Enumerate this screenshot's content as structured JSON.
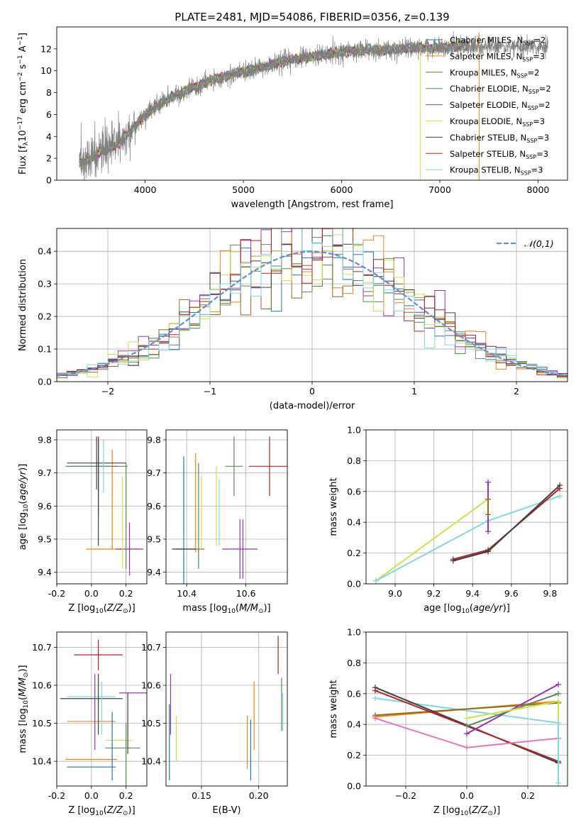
{
  "figure": {
    "title": "PLATE=2481, MJD=54086, FIBERID=0356, z=0.139"
  },
  "models": [
    {
      "label": "Chabrier MILES, N_SSP=2",
      "main": "Chabrier MILES, N",
      "sub": "SSP",
      "tail": "=2",
      "color": "#1f77b4"
    },
    {
      "label": "Salpeter MILES, N_SSP=3",
      "main": "Salpeter MILES, N",
      "sub": "SSP",
      "tail": "=3",
      "color": "#ff7f0e"
    },
    {
      "label": "Kroupa MILES, N_SSP=2",
      "main": "Kroupa MILES, N",
      "sub": "SSP",
      "tail": "=2",
      "color": "#8c6d1f"
    },
    {
      "label": "Chabrier ELODIE, N_SSP=2",
      "main": "Chabrier ELODIE, N",
      "sub": "SSP",
      "tail": "=2",
      "color": "#5a8a5a"
    },
    {
      "label": "Salpeter ELODIE, N_SSP=2",
      "main": "Salpeter ELODIE, N",
      "sub": "SSP",
      "tail": "=2",
      "color": "#9b30b8"
    },
    {
      "label": "Kroupa ELODIE, N_SSP=3",
      "main": "Kroupa ELODIE, N",
      "sub": "SSP",
      "tail": "=3",
      "color": "#cfe04a"
    },
    {
      "label": "Chabrier STELIB, N_SSP=3",
      "main": "Chabrier STELIB, N",
      "sub": "SSP",
      "tail": "=3",
      "color": "#404040"
    },
    {
      "label": "Salpeter STELIB, N_SSP=3",
      "main": "Salpeter STELIB, N",
      "sub": "SSP",
      "tail": "=3",
      "color": "#b22222"
    },
    {
      "label": "Kroupa STELIB, N_SSP=3",
      "main": "Kroupa STELIB, N",
      "sub": "SSP",
      "tail": "=3",
      "color": "#80d8e0"
    }
  ],
  "chart_data": [
    {
      "id": "spectrum",
      "type": "line",
      "xlabel": "wavelength [Angstrom, rest frame]",
      "ylabel": "Flux [f_λ 10^-17 erg cm^-2 s^-1 A^-1]",
      "xlim": [
        3100,
        8300
      ],
      "ylim": [
        0,
        14
      ],
      "xticks": [
        4000,
        5000,
        6000,
        7000,
        8000
      ],
      "yticks": [
        0,
        2,
        4,
        6,
        8,
        10,
        12
      ],
      "grid": false,
      "legend": "right",
      "data_color": "#808080",
      "continuum": {
        "x": [
          3330,
          3450,
          3550,
          3700,
          3850,
          3950,
          4100,
          4300,
          4500,
          4700,
          4900,
          5100,
          5300,
          5500,
          5700,
          5900,
          6100,
          6300,
          6500,
          6700,
          6900,
          7100,
          7300
        ],
        "y": [
          1.7,
          2.0,
          2.6,
          3.2,
          4.5,
          5.5,
          6.7,
          7.7,
          8.5,
          9.2,
          9.7,
          10.1,
          10.6,
          11.0,
          11.3,
          11.6,
          11.8,
          11.9,
          11.9,
          12.1,
          12.1,
          12.2,
          12.2
        ]
      }
    },
    {
      "id": "residuals",
      "type": "histogram",
      "xlabel": "(data-model)/error",
      "ylabel": "Normed distribution",
      "xlim": [
        -2.5,
        2.5
      ],
      "ylim": [
        0,
        0.47
      ],
      "xticks": [
        -2,
        -1,
        0,
        1,
        2
      ],
      "yticks": [
        0,
        0.1,
        0.2,
        0.3,
        0.4
      ],
      "grid": true,
      "legend": "top-right",
      "reference_curve": {
        "label": "𝒩(0,1)",
        "mean": 0,
        "sigma": 1,
        "color": "#6a8fd0"
      },
      "bin_width": 0.1
    },
    {
      "id": "age_vs_Z",
      "type": "errorbar",
      "xlabel": "Z [log10(Z/Z⊙)]",
      "ylabel": "age [log10(age/yr)]",
      "xlim": [
        -0.2,
        0.32
      ],
      "ylim": [
        9.365,
        9.83
      ],
      "xticks": [
        -0.2,
        0.0,
        0.2
      ],
      "yticks": [
        9.4,
        9.5,
        9.6,
        9.7,
        9.8
      ],
      "grid": true,
      "points": [
        {
          "x": 0.0,
          "y": 9.72,
          "xerr": 0.15,
          "yerr": 0.0,
          "model": 0
        },
        {
          "x": 0.12,
          "y": 9.47,
          "xerr": 0.15,
          "yerr": 0.0,
          "model": 1
        },
        {
          "x": 0.12,
          "y": 9.62,
          "xerr": 0.0,
          "yerr": 0.15,
          "model": 1
        },
        {
          "x": 0.04,
          "y": 9.72,
          "xerr": 0.17,
          "yerr": 0.09,
          "model": 3
        },
        {
          "x": 0.22,
          "y": 9.47,
          "xerr": 0.08,
          "yerr": 0.08,
          "model": 4
        },
        {
          "x": 0.18,
          "y": 9.55,
          "xerr": 0.0,
          "yerr": 0.14,
          "model": 5
        },
        {
          "x": 0.03,
          "y": 9.73,
          "xerr": 0.17,
          "yerr": 0.08,
          "model": 6
        },
        {
          "x": 0.04,
          "y": 9.69,
          "xerr": 0.0,
          "yerr": 0.12,
          "model": 7
        },
        {
          "x": 0.07,
          "y": 9.72,
          "xerr": 0.0,
          "yerr": 0.08,
          "model": 8
        },
        {
          "x": 0.2,
          "y": 9.57,
          "xerr": 0.0,
          "yerr": 0.16,
          "model": 3
        },
        {
          "x": 0.04,
          "y": 9.64,
          "xerr": 0.0,
          "yerr": 0.16,
          "model": 6
        }
      ]
    },
    {
      "id": "age_vs_mass",
      "type": "errorbar",
      "xlabel": "mass [log10(M/M⊙)]",
      "ylabel": "",
      "xlim": [
        10.33,
        10.74
      ],
      "ylim": [
        9.365,
        9.83
      ],
      "xticks": [
        10.4,
        10.6
      ],
      "yticks": [
        9.4,
        9.5,
        9.6,
        9.7,
        9.8
      ],
      "grid": true,
      "points": [
        {
          "x": 10.39,
          "y": 9.47,
          "xerr": 0.0,
          "yerr": 0.28,
          "model": 0
        },
        {
          "x": 10.43,
          "y": 9.61,
          "xerr": 0.0,
          "yerr": 0.15,
          "model": 1
        },
        {
          "x": 10.41,
          "y": 9.47,
          "xerr": 0.05,
          "yerr": 0.0,
          "model": 2
        },
        {
          "x": 10.44,
          "y": 9.57,
          "xerr": 0.0,
          "yerr": 0.16,
          "model": 3
        },
        {
          "x": 10.58,
          "y": 9.47,
          "xerr": 0.06,
          "yerr": 0.09,
          "model": 4
        },
        {
          "x": 10.45,
          "y": 9.58,
          "xerr": 0.0,
          "yerr": 0.11,
          "model": 5
        },
        {
          "x": 10.39,
          "y": 9.47,
          "xerr": 0.04,
          "yerr": 0.0,
          "model": 6
        },
        {
          "x": 10.68,
          "y": 9.72,
          "xerr": 0.07,
          "yerr": 0.09,
          "model": 7
        },
        {
          "x": 10.5,
          "y": 9.6,
          "xerr": 0.0,
          "yerr": 0.12,
          "model": 5
        },
        {
          "x": 10.56,
          "y": 9.72,
          "xerr": 0.03,
          "yerr": 0.09,
          "model": 3
        },
        {
          "x": 10.59,
          "y": 9.47,
          "xerr": 0.0,
          "yerr": 0.09,
          "model": 4
        },
        {
          "x": 10.51,
          "y": 9.58,
          "xerr": 0.0,
          "yerr": 0.1,
          "model": 8
        }
      ]
    },
    {
      "id": "weight_vs_age",
      "type": "line",
      "xlabel": "age [log10(age/yr)]",
      "ylabel": "mass weight",
      "xlim": [
        8.85,
        9.89
      ],
      "ylim": [
        0,
        1
      ],
      "xticks": [
        9.0,
        9.2,
        9.4,
        9.6,
        9.8
      ],
      "yticks": [
        0,
        0.2,
        0.4,
        0.6,
        0.8,
        1.0
      ],
      "grid": true,
      "series": [
        {
          "model": 5,
          "x": [
            8.9,
            9.48
          ],
          "y": [
            0.02,
            0.55
          ]
        },
        {
          "model": 8,
          "x": [
            8.9,
            9.48,
            9.85
          ],
          "y": [
            0.02,
            0.41,
            0.57
          ]
        },
        {
          "model": 7,
          "x": [
            9.3,
            9.48,
            9.85
          ],
          "y": [
            0.16,
            0.22,
            0.62
          ]
        },
        {
          "model": 6,
          "x": [
            9.3,
            9.48,
            9.85
          ],
          "y": [
            0.15,
            0.21,
            0.64
          ]
        },
        {
          "model": 4,
          "x": [
            9.48,
            9.48
          ],
          "y": [
            0.34,
            0.66
          ]
        },
        {
          "model": 2,
          "x": [
            9.48,
            9.48
          ],
          "y": [
            0.45,
            0.55
          ]
        }
      ]
    },
    {
      "id": "mass_vs_Z",
      "type": "errorbar",
      "xlabel": "Z [log10(Z/Z⊙)]",
      "ylabel": "mass [log10(M/M⊙)]",
      "xlim": [
        -0.2,
        0.32
      ],
      "ylim": [
        10.335,
        10.74
      ],
      "xticks": [
        -0.2,
        0.0,
        0.2
      ],
      "yticks": [
        10.4,
        10.5,
        10.6,
        10.7
      ],
      "grid": true,
      "points": [
        {
          "x": 0.0,
          "y": 10.385,
          "xerr": 0.14,
          "yerr": 0.0,
          "model": 0
        },
        {
          "x": 0.0,
          "y": 10.405,
          "xerr": 0.15,
          "yerr": 0.0,
          "model": 1
        },
        {
          "x": 0.04,
          "y": 10.68,
          "xerr": 0.14,
          "yerr": 0.04,
          "model": 7
        },
        {
          "x": 0.25,
          "y": 10.58,
          "xerr": 0.09,
          "yerr": 0.0,
          "model": 4
        },
        {
          "x": 0.18,
          "y": 10.435,
          "xerr": 0.1,
          "yerr": 0.0,
          "model": 3
        },
        {
          "x": 0.16,
          "y": 10.455,
          "xerr": 0.08,
          "yerr": 0.0,
          "model": 5
        },
        {
          "x": 0.0,
          "y": 10.565,
          "xerr": 0.18,
          "yerr": 0.0,
          "model": 6
        },
        {
          "x": 0.0,
          "y": 10.57,
          "xerr": 0.14,
          "yerr": 0.0,
          "model": 8
        },
        {
          "x": 0.0,
          "y": 10.505,
          "xerr": 0.14,
          "yerr": 0.0,
          "model": 1
        },
        {
          "x": 0.04,
          "y": 10.55,
          "xerr": 0.0,
          "yerr": 0.08,
          "model": 6
        },
        {
          "x": 0.06,
          "y": 10.54,
          "xerr": 0.0,
          "yerr": 0.07,
          "model": 8
        },
        {
          "x": 0.12,
          "y": 10.44,
          "xerr": 0.0,
          "yerr": 0.09,
          "model": 0
        },
        {
          "x": 0.2,
          "y": 10.4,
          "xerr": 0.0,
          "yerr": 0.1,
          "model": 3
        },
        {
          "x": 0.21,
          "y": 10.5,
          "xerr": 0.0,
          "yerr": 0.08,
          "model": 6
        },
        {
          "x": 0.02,
          "y": 10.53,
          "xerr": 0.0,
          "yerr": 0.1,
          "model": 4
        }
      ]
    },
    {
      "id": "mass_vs_ebv",
      "type": "errorbar",
      "xlabel": "E(B-V)",
      "ylabel": "",
      "xlim": [
        0.119,
        0.225
      ],
      "ylim": [
        10.335,
        10.74
      ],
      "xticks": [
        0.15,
        0.2
      ],
      "yticks": [
        10.4,
        10.5,
        10.6,
        10.7
      ],
      "grid": true,
      "points": [
        {
          "x": 0.122,
          "y": 10.45,
          "xerr": 0.0,
          "yerr": 0.1,
          "model": 0
        },
        {
          "x": 0.123,
          "y": 10.55,
          "xerr": 0.0,
          "yerr": 0.08,
          "model": 4
        },
        {
          "x": 0.128,
          "y": 10.46,
          "xerr": 0.0,
          "yerr": 0.06,
          "model": 5
        },
        {
          "x": 0.19,
          "y": 10.45,
          "xerr": 0.0,
          "yerr": 0.07,
          "model": 1
        },
        {
          "x": 0.193,
          "y": 10.43,
          "xerr": 0.0,
          "yerr": 0.08,
          "model": 0
        },
        {
          "x": 0.196,
          "y": 10.52,
          "xerr": 0.0,
          "yerr": 0.09,
          "model": 1
        },
        {
          "x": 0.217,
          "y": 10.68,
          "xerr": 0.0,
          "yerr": 0.05,
          "model": 7
        },
        {
          "x": 0.22,
          "y": 10.55,
          "xerr": 0.0,
          "yerr": 0.07,
          "model": 3
        },
        {
          "x": 0.221,
          "y": 10.53,
          "xerr": 0.0,
          "yerr": 0.05,
          "model": 8
        }
      ]
    },
    {
      "id": "weight_vs_Z",
      "type": "line",
      "xlabel": "Z [log10(Z/Z⊙)]",
      "ylabel": "mass weight",
      "xlim": [
        -0.33,
        0.33
      ],
      "ylim": [
        0,
        1
      ],
      "xticks": [
        -0.2,
        0.0,
        0.2
      ],
      "yticks": [
        0,
        0.2,
        0.4,
        0.6,
        0.8,
        1.0
      ],
      "grid": true,
      "series": [
        {
          "model": 8,
          "x": [
            -0.3,
            0.0,
            0.3
          ],
          "y": [
            0.57,
            0.49,
            0.41
          ]
        },
        {
          "model": 1,
          "x": [
            -0.3,
            0.3
          ],
          "y": [
            0.45,
            0.55
          ]
        },
        {
          "model": 2,
          "x": [
            -0.3,
            0.3
          ],
          "y": [
            0.46,
            0.54
          ]
        },
        {
          "model": 6,
          "x": [
            -0.3,
            0.3
          ],
          "y": [
            0.64,
            0.15
          ]
        },
        {
          "model": 7,
          "x": [
            -0.3,
            0.3
          ],
          "y": [
            0.62,
            0.16
          ]
        },
        {
          "model": 4,
          "x": [
            0.0,
            0.3
          ],
          "y": [
            0.34,
            0.66
          ]
        },
        {
          "model": 3,
          "x": [
            0.0,
            0.3
          ],
          "y": [
            0.39,
            0.6
          ]
        },
        {
          "model": 5,
          "x": [
            0.0,
            0.3,
            0.3
          ],
          "y": [
            0.44,
            0.55,
            0.02
          ]
        },
        {
          "model": "pink",
          "x": [
            -0.3,
            0.0,
            0.3
          ],
          "y": [
            0.44,
            0.25,
            0.31
          ]
        },
        {
          "model": 8,
          "x": [
            0.3,
            0.3
          ],
          "y": [
            0.41,
            0.02
          ]
        }
      ]
    }
  ],
  "pink_color": "#e377c2"
}
